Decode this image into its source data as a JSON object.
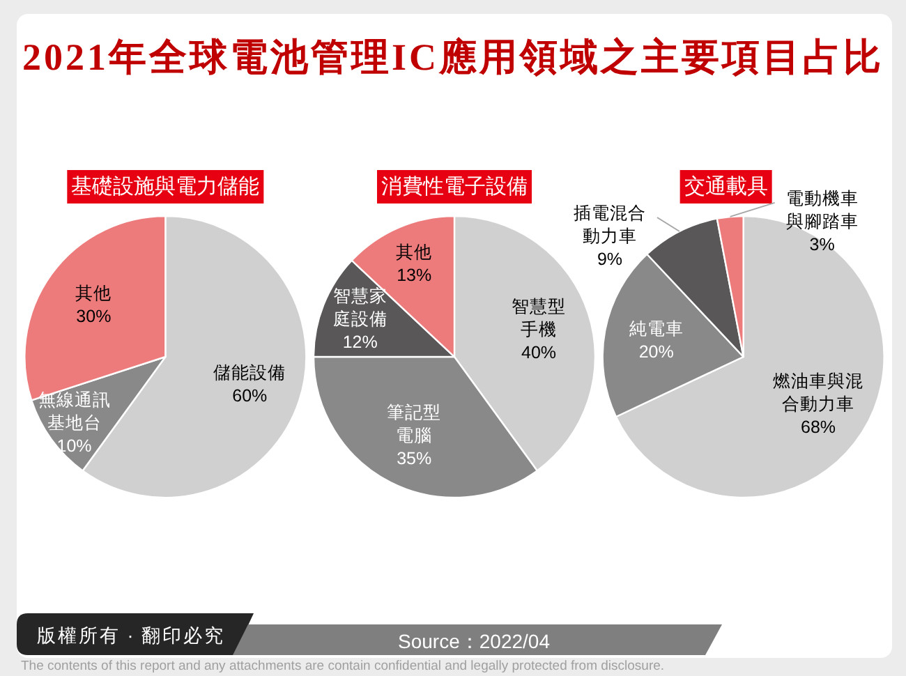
{
  "chart_data": [
    {
      "type": "other",
      "title": "2021年全球電池管理IC應用領域之主要項目占比",
      "annotations": [
        "版權所有 · 翻印必究",
        "Source：2022/04",
        "The contents of this report and any attachments are contain confidential and legally protected from disclosure."
      ]
    },
    {
      "type": "pie",
      "title": "基礎設施與電力儲能",
      "categories": [
        "儲能設備",
        "無線通訊基地台",
        "其他"
      ],
      "values": [
        60,
        10,
        30
      ],
      "value_labels": [
        "60%",
        "10%",
        "30%"
      ],
      "colors": [
        "#d0d0d0",
        "#898989",
        "#ee7b7b"
      ]
    },
    {
      "type": "pie",
      "title": "消費性電子設備",
      "categories": [
        "智慧型手機",
        "筆記型電腦",
        "智慧家庭設備",
        "其他"
      ],
      "values": [
        40,
        35,
        12,
        13
      ],
      "value_labels": [
        "40%",
        "35%",
        "12%",
        "13%"
      ],
      "colors": [
        "#d0d0d0",
        "#898989",
        "#595757",
        "#ee7b7b"
      ]
    },
    {
      "type": "pie",
      "title": "交通載具",
      "categories": [
        "燃油車與混合動力車",
        "純電車",
        "插電混合動力車",
        "電動機車與腳踏車"
      ],
      "values": [
        68,
        20,
        9,
        3
      ],
      "value_labels": [
        "68%",
        "20%",
        "9%",
        "3%"
      ],
      "colors": [
        "#d0d0d0",
        "#898989",
        "#595757",
        "#ee7b7b"
      ]
    }
  ]
}
